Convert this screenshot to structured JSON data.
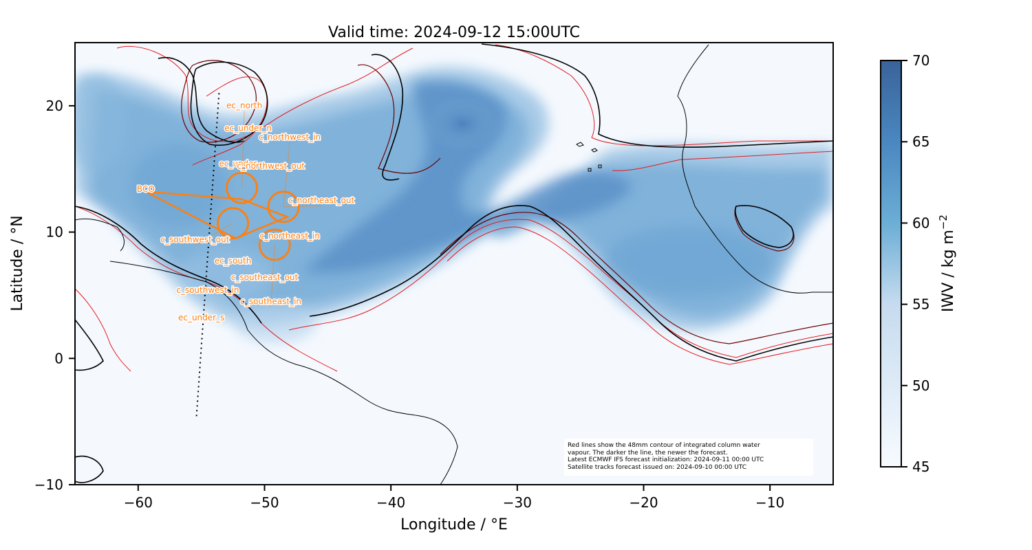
{
  "title": "Valid time: 2024-09-12 15:00UTC",
  "xlabel": "Longitude / °E",
  "ylabel": "Latitude / °N",
  "colorbar": {
    "label": "IWV / kg m",
    "label_sup": "−2",
    "ticks": [
      "45",
      "50",
      "55",
      "60",
      "65",
      "70"
    ],
    "colormap": "Blues",
    "range": [
      45,
      70
    ]
  },
  "x_ticks": [
    "−60",
    "−50",
    "−40",
    "−30",
    "−20",
    "−10"
  ],
  "y_ticks": [
    "20",
    "10",
    "0",
    "−10"
  ],
  "note": [
    "Red lines show the 48mm contour of integrated column water",
    "vapour. The darker the line, the newer the forecast.",
    "Latest ECMWF IFS forecast initialization: 2024-09-11 00:00 UTC",
    "Satellite tracks forecast issued on: 2024-09-10 00:00 UTC"
  ],
  "colors": {
    "flight_track": "#ff7f0e",
    "contour_new": "#000000",
    "contour_mid": "#6b0000",
    "contour_old": "#e41a1c",
    "coastline": "#000000",
    "iwv_high": "#3a6fb0",
    "iwv_low": "#f7fbff"
  },
  "waypoints": [
    {
      "name": "BCO",
      "lon": -59.4,
      "lat": 13.2
    },
    {
      "name": "ec_north",
      "lon": -51.6,
      "lat": 19.8
    },
    {
      "name": "ec_under_n",
      "lon": -51.3,
      "lat": 18.0
    },
    {
      "name": "ec_under",
      "lon": -52.1,
      "lat": 15.2
    },
    {
      "name": "ec_under_s",
      "lon": -55.0,
      "lat": 3.0
    },
    {
      "name": "c_northwest_in",
      "lon": -48.0,
      "lat": 17.3
    },
    {
      "name": "c_northwest_out",
      "lon": -49.5,
      "lat": 15.0
    },
    {
      "name": "c_northeast_out",
      "lon": -45.5,
      "lat": 12.3
    },
    {
      "name": "c_northeast_in",
      "lon": -48.0,
      "lat": 9.5
    },
    {
      "name": "c_southwest_out",
      "lon": -55.5,
      "lat": 9.2
    },
    {
      "name": "c_southwest_in",
      "lon": -54.5,
      "lat": 5.2
    },
    {
      "name": "c_southeast_out",
      "lon": -50.0,
      "lat": 6.2
    },
    {
      "name": "c_southeast_in",
      "lon": -49.5,
      "lat": 4.3
    },
    {
      "name": "ec_south",
      "lon": -52.5,
      "lat": 7.5
    }
  ],
  "circles": [
    {
      "name": "circle-north",
      "lon": -51.8,
      "lat": 13.5
    },
    {
      "name": "circle-northeast",
      "lon": -48.5,
      "lat": 12.0
    },
    {
      "name": "circle-southwest",
      "lon": -52.5,
      "lat": 10.7
    },
    {
      "name": "circle-southeast",
      "lon": -49.2,
      "lat": 9.0
    }
  ],
  "satellite_track": [
    [
      -53.6,
      21.0
    ],
    [
      -55.4,
      -4.8
    ]
  ]
}
